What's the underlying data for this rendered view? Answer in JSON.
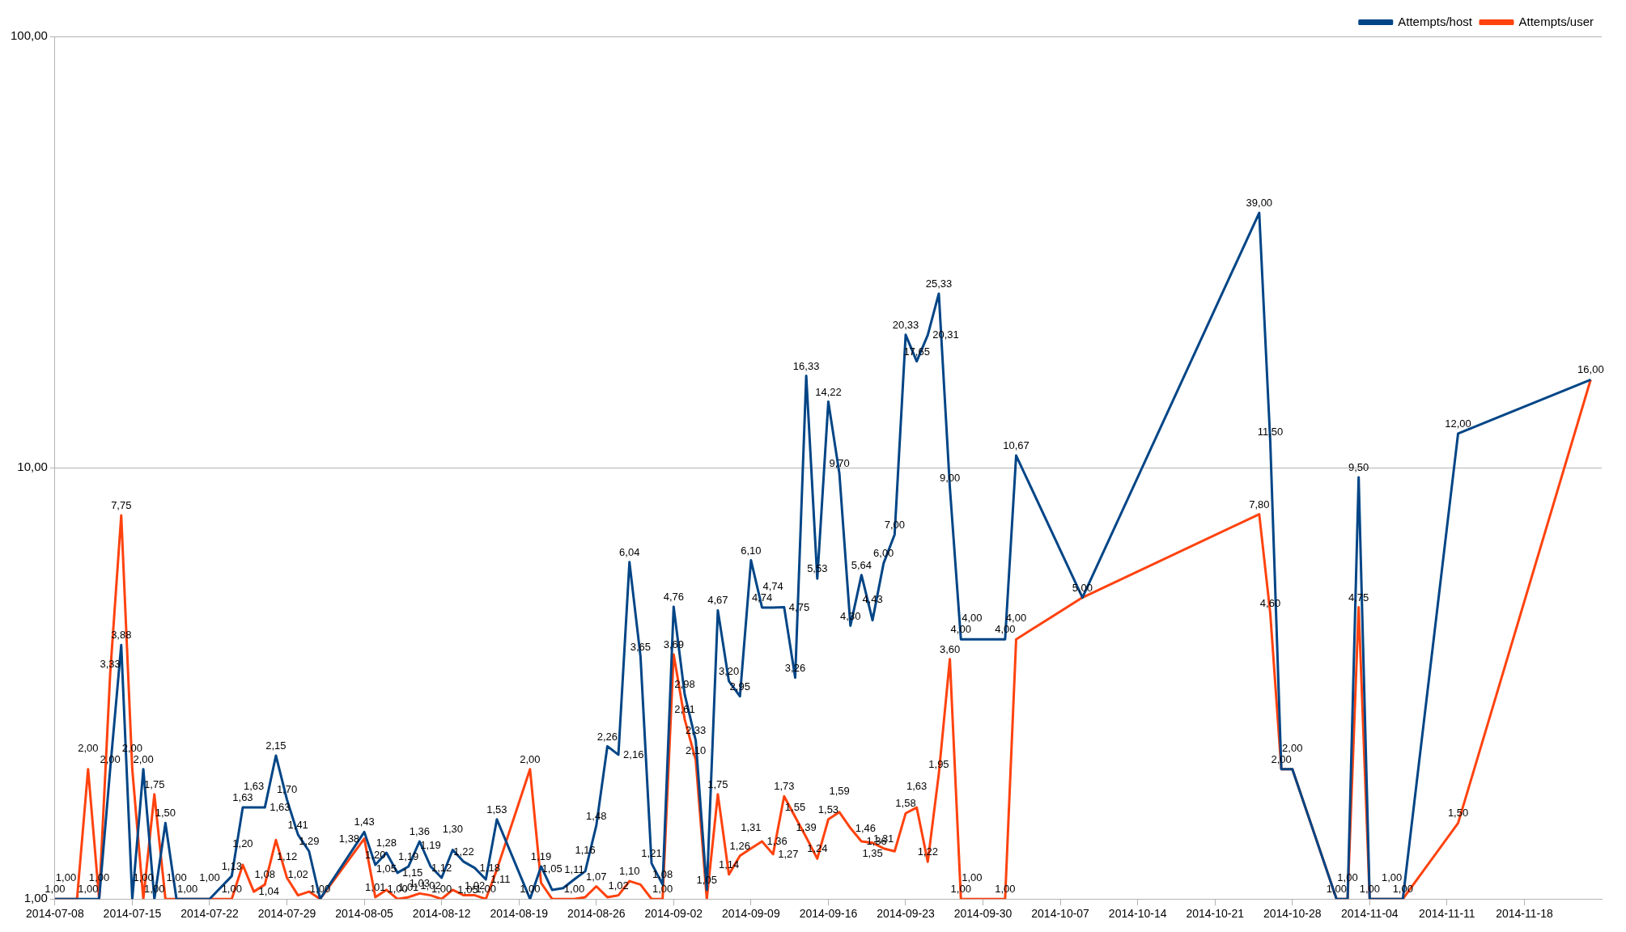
{
  "chart_data": {
    "type": "line",
    "log": "y",
    "grid": "y",
    "legend": "top right",
    "xlim": [
      "2014-07-08",
      "2014-11-25"
    ],
    "xticks": [
      "2014-07-08",
      "2014-07-15",
      "2014-07-22",
      "2014-07-29",
      "2014-08-05",
      "2014-08-12",
      "2014-08-19",
      "2014-08-26",
      "2014-09-02",
      "2014-09-09",
      "2014-09-16",
      "2014-09-23",
      "2014-09-30",
      "2014-10-07",
      "2014-10-14",
      "2014-10-21",
      "2014-10-28",
      "2014-11-04",
      "2014-11-11",
      "2014-11-18"
    ],
    "ylim": [
      1,
      100
    ],
    "yticks": [
      {
        "value": 1,
        "label": "1,00"
      },
      {
        "value": 10,
        "label": "10,00"
      },
      {
        "value": 100,
        "label": "100,00"
      }
    ],
    "x": [
      "2014-07-08",
      "2014-07-09",
      "2014-07-10",
      "2014-07-11",
      "2014-07-12",
      "2014-07-13",
      "2014-07-14",
      "2014-07-15",
      "2014-07-16",
      "2014-07-17",
      "2014-07-18",
      "2014-07-19",
      "2014-07-20",
      "2014-07-21",
      "2014-07-22",
      "2014-07-24",
      "2014-07-25",
      "2014-07-26",
      "2014-07-27",
      "2014-07-28",
      "2014-07-29",
      "2014-07-30",
      "2014-07-31",
      "2014-08-01",
      "2014-08-05",
      "2014-08-06",
      "2014-08-07",
      "2014-08-08",
      "2014-08-09",
      "2014-08-10",
      "2014-08-11",
      "2014-08-12",
      "2014-08-13",
      "2014-08-14",
      "2014-08-15",
      "2014-08-16",
      "2014-08-17",
      "2014-08-20",
      "2014-08-21",
      "2014-08-22",
      "2014-08-23",
      "2014-08-24",
      "2014-08-25",
      "2014-08-26",
      "2014-08-27",
      "2014-08-28",
      "2014-08-29",
      "2014-08-30",
      "2014-08-31",
      "2014-09-01",
      "2014-09-02",
      "2014-09-03",
      "2014-09-04",
      "2014-09-05",
      "2014-09-06",
      "2014-09-07",
      "2014-09-08",
      "2014-09-09",
      "2014-09-10",
      "2014-09-11",
      "2014-09-12",
      "2014-09-13",
      "2014-09-14",
      "2014-09-15",
      "2014-09-16",
      "2014-09-17",
      "2014-09-18",
      "2014-09-19",
      "2014-09-20",
      "2014-09-21",
      "2014-09-22",
      "2014-09-23",
      "2014-09-24",
      "2014-09-25",
      "2014-09-26",
      "2014-09-27",
      "2014-09-28",
      "2014-09-29",
      "2014-10-02",
      "2014-10-03",
      "2014-10-09",
      "2014-10-25",
      "2014-10-26",
      "2014-10-27",
      "2014-10-28",
      "2014-11-01",
      "2014-11-02",
      "2014-11-03",
      "2014-11-04",
      "2014-11-06",
      "2014-11-07",
      "2014-11-12",
      "2014-11-24"
    ],
    "series": [
      {
        "name": "Attempts/host",
        "color": "#004586",
        "values": [
          1,
          1,
          1,
          1,
          1,
          2,
          3.88,
          1,
          2,
          1,
          1.5,
          1,
          1,
          1,
          1,
          1.13,
          1.63,
          1.63,
          1.63,
          2.15,
          1.7,
          1.41,
          1.29,
          1,
          1.43,
          1.2,
          1.28,
          1.15,
          1.19,
          1.36,
          1.19,
          1.12,
          1.3,
          1.22,
          1.18,
          1.11,
          1.53,
          1,
          1.19,
          1.05,
          1.06,
          1.11,
          1.16,
          1.48,
          2.26,
          2.16,
          6.04,
          3.65,
          1.21,
          1.08,
          4.76,
          2.98,
          2.33,
          1.05,
          4.67,
          3.2,
          2.95,
          6.1,
          4.74,
          4.74,
          4.75,
          3.26,
          16.33,
          5.53,
          14.22,
          9.7,
          4.3,
          5.64,
          4.43,
          6,
          7,
          20.33,
          17.65,
          20.31,
          25.33,
          9,
          4,
          4,
          4,
          10.67,
          5,
          39,
          11.5,
          2,
          2,
          1,
          1,
          9.5,
          1,
          1,
          1,
          12,
          16
        ],
        "value_labels": [
          "1,00",
          "1,00",
          null,
          "1,00",
          "1,00",
          "2,00",
          "3,88",
          null,
          "2,00",
          "1,00",
          "1,50",
          "1,00",
          "1,00",
          null,
          "1,00",
          "1,13",
          "1,63",
          "1,63",
          "1,63",
          "2,15",
          "1,70",
          "1,41",
          "1,29",
          "1,00",
          "1,43",
          "1,20",
          "1,28",
          "1,15",
          "1,19",
          "1,36",
          "1,19",
          "1,12",
          "1,30",
          "1,22",
          "1,18",
          "1,11",
          "1,53",
          "1,00",
          "1,19",
          "1,05",
          null,
          "1,11",
          "1,16",
          "1,48",
          "2,26",
          "2,16",
          "6,04",
          "3,65",
          "1,21",
          "1,08",
          "4,76",
          "2,98",
          "2,33",
          "1,05",
          "4,67",
          "3,20",
          "2,95",
          "6,10",
          "4,74",
          "4,74",
          "4,75",
          "3,26",
          "16,33",
          "5,53",
          "14,22",
          "9,70",
          "4,30",
          "5,64",
          "4,43",
          "6,00",
          "7,00",
          "20,33",
          "17,65",
          "20,31",
          "25,33",
          "9,00",
          "4,00",
          "4,00",
          "4,00",
          "10,67",
          "5,00",
          "39,00",
          "11,50",
          "2,00",
          "2,00",
          "1,00",
          "1,00",
          "9,50",
          "1,00",
          "1,00",
          "1,00",
          "12,00",
          "16,00"
        ]
      },
      {
        "name": "Attempts/user",
        "color": "#ff420e",
        "values": [
          1,
          1,
          1,
          2,
          1,
          3.33,
          7.75,
          2,
          1,
          1.75,
          1,
          1,
          1,
          1,
          1,
          1,
          1.2,
          1.04,
          1.08,
          1.37,
          1.12,
          1.02,
          1.04,
          1,
          1.38,
          1.01,
          1.05,
          1,
          1.01,
          1.03,
          1.02,
          1,
          1.05,
          1.02,
          1.02,
          1,
          1.17,
          2,
          1.09,
          1,
          1,
          1,
          1.01,
          1.07,
          1.01,
          1.02,
          1.1,
          1.08,
          1,
          1,
          3.69,
          2.61,
          2.1,
          1,
          1.75,
          1.14,
          1.26,
          1.31,
          1.36,
          1.27,
          1.73,
          1.55,
          1.39,
          1.24,
          1.53,
          1.59,
          1.46,
          1.36,
          1.35,
          1.31,
          1.29,
          1.58,
          1.63,
          1.22,
          1.95,
          3.6,
          1,
          1,
          1,
          4,
          5,
          7.8,
          4.6,
          2,
          2,
          1,
          1,
          4.75,
          1,
          1,
          1,
          1.5,
          16
        ],
        "value_labels": [
          null,
          null,
          null,
          "2,00",
          null,
          "3,33",
          "7,75",
          "2,00",
          "1,00",
          "1,75",
          null,
          null,
          null,
          null,
          null,
          "1,00",
          "1,20",
          "1,04",
          "1,08",
          null,
          "1,12",
          "1,02",
          null,
          null,
          "1,38",
          "1,01",
          "1,05",
          "1,00",
          "1,01",
          "1,03",
          "1,02",
          "1,00",
          "1,05",
          null,
          "1,02",
          "1,00",
          null,
          "2,00",
          null,
          null,
          null,
          "1,00",
          null,
          "1,07",
          null,
          "1,02",
          "1,10",
          null,
          null,
          "1,00",
          "3,69",
          "2,61",
          "2,10",
          null,
          "1,75",
          "1,14",
          "1,26",
          "1,31",
          "1,36",
          "1,27",
          "1,73",
          "1,55",
          "1,39",
          "1,24",
          "1,53",
          "1,59",
          "1,46",
          "1,36",
          "1,35",
          "1,31",
          null,
          "1,58",
          "1,63",
          "1,22",
          "1,95",
          "3,60",
          "1,00",
          "1,00",
          "1,00",
          "4,00",
          null,
          "7,80",
          "4,60",
          null,
          null,
          null,
          null,
          "4,75",
          null,
          null,
          null,
          "1,50",
          null
        ]
      }
    ]
  }
}
